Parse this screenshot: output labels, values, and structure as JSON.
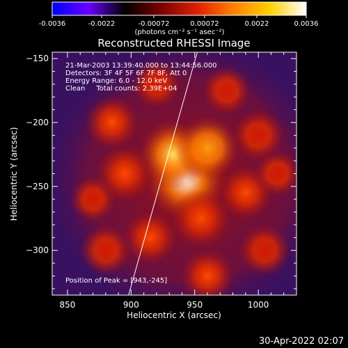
{
  "colorbar": {
    "tick_labels": [
      "-0.0036",
      "-0.0022",
      "-0.00072",
      "0.00072",
      "0.0022",
      "0.0036"
    ],
    "tick_values": [
      -0.0036,
      -0.0022,
      -0.00072,
      0.00072,
      0.0022,
      0.0036
    ],
    "range": [
      -0.0036,
      0.0036
    ],
    "unit_label": "(photons cm⁻² s⁻¹ asec⁻²)",
    "colors": [
      "#0000ff",
      "#6a00ff",
      "#000000",
      "#7a0000",
      "#e02000",
      "#ff8000",
      "#ffd000",
      "#ffffff"
    ]
  },
  "chart_data": {
    "type": "heatmap",
    "title": "Reconstructed RHESSI Image",
    "xlabel": "Heliocentric X (arcsec)",
    "ylabel": "Heliocentric Y (arcsec)",
    "xlim": [
      838,
      1030
    ],
    "ylim": [
      -335,
      -145
    ],
    "x_ticks": [
      850,
      900,
      950,
      1000
    ],
    "y_ticks": [
      -150,
      -200,
      -250,
      -300
    ],
    "annotations": [
      "21-Mar-2003 13:39:40.000 to 13:44:56.000",
      "Detectors: 3F 4F 5F 6F 7F 8F, Att 0",
      "Energy Range: 6.0 - 12.0 keV",
      "Clean     Total counts: 2.39E+04"
    ],
    "peak_label": "Position of Peak = [943,-245]",
    "peak": [
      943,
      -245
    ],
    "limb_line": [
      [
        898,
        -335
      ],
      [
        952,
        -145
      ]
    ],
    "sources": [
      {
        "x": 943,
        "y": -245,
        "intensity": 1.0
      },
      {
        "x": 933,
        "y": -225,
        "intensity": 0.75
      },
      {
        "x": 960,
        "y": -220,
        "intensity": 0.65
      },
      {
        "x": 955,
        "y": -275,
        "intensity": 0.55
      },
      {
        "x": 895,
        "y": -240,
        "intensity": 0.5
      },
      {
        "x": 885,
        "y": -200,
        "intensity": 0.45
      },
      {
        "x": 990,
        "y": -255,
        "intensity": 0.45
      },
      {
        "x": 1000,
        "y": -210,
        "intensity": 0.4
      },
      {
        "x": 880,
        "y": -300,
        "intensity": 0.4
      },
      {
        "x": 960,
        "y": -320,
        "intensity": 0.45
      },
      {
        "x": 1005,
        "y": -300,
        "intensity": 0.4
      },
      {
        "x": 920,
        "y": -170,
        "intensity": 0.35
      },
      {
        "x": 975,
        "y": -175,
        "intensity": 0.35
      },
      {
        "x": 915,
        "y": -290,
        "intensity": 0.45
      },
      {
        "x": 870,
        "y": -260,
        "intensity": 0.3
      },
      {
        "x": 1015,
        "y": -240,
        "intensity": 0.3
      }
    ]
  },
  "timestamp": "30-Apr-2022 02:07"
}
